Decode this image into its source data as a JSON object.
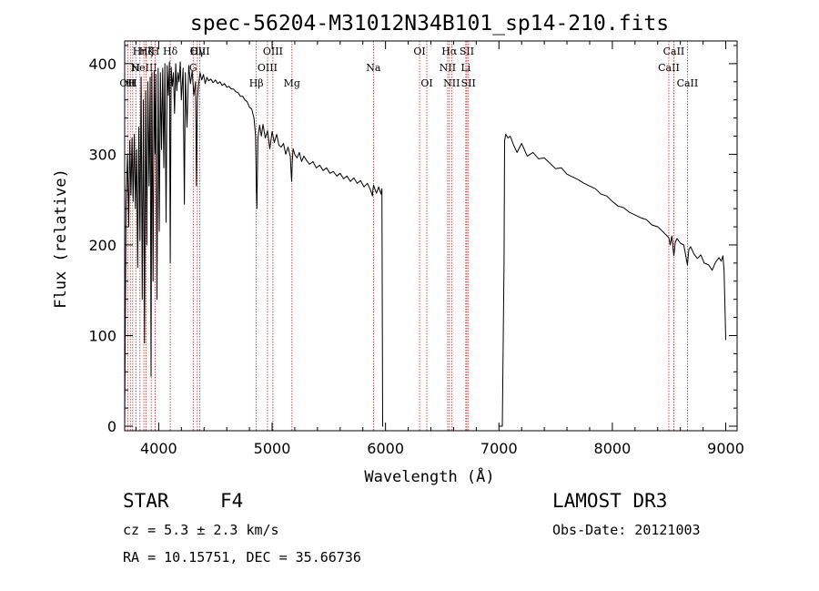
{
  "chart_data": {
    "type": "line",
    "title": "spec-56204-M31012N34B101_sp14-210.fits",
    "xlabel": "Wavelength (Å)",
    "ylabel": "Flux (relative)",
    "xlim": [
      3700,
      9100
    ],
    "ylim": [
      -5,
      425
    ],
    "x_ticks": [
      4000,
      5000,
      6000,
      7000,
      8000,
      9000
    ],
    "y_ticks": [
      0,
      100,
      200,
      300,
      400
    ],
    "series": [
      {
        "name": "spectrum",
        "segments": [
          {
            "x": [
              3700,
              3712,
              3725,
              3735,
              3745,
              3755,
              3765,
              3775,
              3785,
              3795,
              3805,
              3815,
              3825,
              3835,
              3845,
              3855,
              3865,
              3875,
              3885,
              3895,
              3905,
              3915,
              3925,
              3933,
              3940,
              3950,
              3960,
              3968,
              3975,
              3985,
              3995,
              4005,
              4015,
              4025,
              4035,
              4045,
              4055,
              4065,
              4075,
              4085,
              4095,
              4102,
              4110,
              4120,
              4130,
              4140,
              4150,
              4160,
              4170,
              4180,
              4190,
              4200,
              4215,
              4226,
              4235,
              4250,
              4265,
              4280,
              4295,
              4310,
              4325,
              4333,
              4340,
              4350,
              4365,
              4380,
              4395,
              4410,
              4425,
              4440,
              4460,
              4480,
              4500,
              4520,
              4540,
              4560,
              4580,
              4600,
              4620,
              4640,
              4660,
              4680,
              4700,
              4720,
              4740,
              4760,
              4780,
              4800,
              4820,
              4840,
              4855,
              4861,
              4866,
              4875,
              4890,
              4905,
              4920,
              4940,
              4960,
              4980,
              5000,
              5020,
              5040,
              5060,
              5080,
              5100,
              5120,
              5140,
              5160,
              5167,
              5172,
              5178,
              5185,
              5200,
              5220,
              5240,
              5260,
              5280,
              5300,
              5330,
              5360,
              5390,
              5420,
              5450,
              5480,
              5510,
              5540,
              5570,
              5600,
              5630,
              5660,
              5690,
              5720,
              5750,
              5780,
              5810,
              5840,
              5870,
              5885,
              5890,
              5895,
              5905,
              5920,
              5940,
              5960,
              5968,
              5975,
              5980
            ],
            "y": [
              0,
              245,
              300,
              220,
              315,
              255,
              318,
              248,
              322,
              240,
              305,
              175,
              330,
              205,
              385,
              140,
              360,
              92,
              370,
              200,
              380,
              265,
              385,
              55,
              390,
              160,
              392,
              300,
              388,
              140,
              395,
              215,
              390,
              305,
              395,
              285,
              400,
              225,
              398,
              365,
              402,
              180,
              396,
              375,
              390,
              345,
              400,
              370,
              390,
              380,
              402,
              360,
              395,
              245,
              390,
              330,
              398,
              378,
              392,
              365,
              380,
              265,
              360,
              375,
              390,
              382,
              388,
              378,
              385,
              381,
              383,
              379,
              382,
              378,
              380,
              376,
              378,
              374,
              375,
              372,
              372,
              369,
              368,
              364,
              364,
              360,
              358,
              352,
              350,
              340,
              320,
              262,
              240,
              318,
              332,
              320,
              333,
              318,
              326,
              306,
              325,
              313,
              322,
              310,
              308,
              312,
              300,
              308,
              298,
              282,
              270,
              292,
              306,
              300,
              296,
              302,
              292,
              298,
              294,
              289,
              292,
              285,
              288,
              282,
              285,
              279,
              281,
              276,
              279,
              273,
              276,
              270,
              274,
              268,
              271,
              264,
              268,
              260,
              254,
              262,
              266,
              262,
              257,
              264,
              256,
              262,
              0,
              0
            ]
          },
          {
            "x": [
              7000,
              7030,
              7045,
              7050,
              7060,
              7080,
              7100,
              7130,
              7160,
              7200,
              7250,
              7300,
              7350,
              7400,
              7450,
              7500,
              7550,
              7600,
              7650,
              7700,
              7750,
              7800,
              7850,
              7900,
              7950,
              8000,
              8050,
              8100,
              8150,
              8200,
              8250,
              8300,
              8350,
              8400,
              8450,
              8498,
              8510,
              8525,
              8542,
              8555,
              8570,
              8600,
              8630,
              8662,
              8675,
              8690,
              8720,
              8750,
              8780,
              8810,
              8850,
              8880,
              8910,
              8940,
              8960,
              8975,
              8985,
              8993,
              9000
            ],
            "y": [
              0,
              0,
              180,
              315,
              322,
              318,
              320,
              310,
              302,
              312,
              298,
              302,
              295,
              296,
              290,
              284,
              285,
              278,
              275,
              272,
              268,
              265,
              262,
              256,
              254,
              248,
              243,
              241,
              236,
              233,
              230,
              228,
              222,
              220,
              214,
              208,
              200,
              210,
              188,
              203,
              207,
              202,
              200,
              178,
              195,
              198,
              190,
              185,
              189,
              180,
              178,
              172,
              181,
              186,
              182,
              188,
              172,
              130,
              95
            ]
          }
        ]
      }
    ],
    "line_markers": [
      {
        "x": 3726,
        "label": "OII",
        "row": 2
      },
      {
        "x": 3750,
        "label": "H",
        "row": 2
      },
      {
        "x": 3771,
        "label": "H",
        "row": 2
      },
      {
        "x": 3798,
        "label": "H",
        "row": 1
      },
      {
        "x": 3835,
        "label": "Hη",
        "row": 0
      },
      {
        "x": 3869,
        "label": "NeIII",
        "row": 1
      },
      {
        "x": 3889,
        "label": "Hζ",
        "row": 0
      },
      {
        "x": 3934,
        "label": "K",
        "row": 0
      },
      {
        "x": 3969,
        "label": "H",
        "row": 0
      },
      {
        "x": 4102,
        "label": "Hδ",
        "row": 0
      },
      {
        "x": 4304,
        "label": "G",
        "row": 1
      },
      {
        "x": 4341,
        "label": "Hγ",
        "row": 0
      },
      {
        "x": 4363,
        "label": "OIII",
        "row": 0
      },
      {
        "x": 4861,
        "label": "Hβ",
        "row": 2
      },
      {
        "x": 4959,
        "label": "OIII",
        "row": 1
      },
      {
        "x": 5007,
        "label": "OIII",
        "row": 0
      },
      {
        "x": 5175,
        "label": "Mg",
        "row": 2
      },
      {
        "x": 5893,
        "label": "Na",
        "row": 1
      },
      {
        "x": 6300,
        "label": "OI",
        "row": 0
      },
      {
        "x": 6364,
        "label": "OI",
        "row": 2
      },
      {
        "x": 6548,
        "label": "NII",
        "row": 1
      },
      {
        "x": 6563,
        "label": "Hα",
        "row": 0
      },
      {
        "x": 6583,
        "label": "NII",
        "row": 2
      },
      {
        "x": 6708,
        "label": "Li",
        "row": 1
      },
      {
        "x": 6717,
        "label": "SII",
        "row": 0
      },
      {
        "x": 6731,
        "label": "SII",
        "row": 2
      },
      {
        "x": 8498,
        "label": "CaII",
        "row": 1
      },
      {
        "x": 8542,
        "label": "CaII",
        "row": 0
      },
      {
        "x": 8662,
        "label": "CaII",
        "row": 2
      }
    ]
  },
  "info": {
    "obj_class": "STAR",
    "subclass": "F4",
    "survey": "LAMOST DR3",
    "cz": "cz = 5.3 ± 2.3 km/s",
    "obs_date": "Obs-Date: 20121003",
    "radec": "RA =  10.15751, DEC =  35.66736"
  }
}
